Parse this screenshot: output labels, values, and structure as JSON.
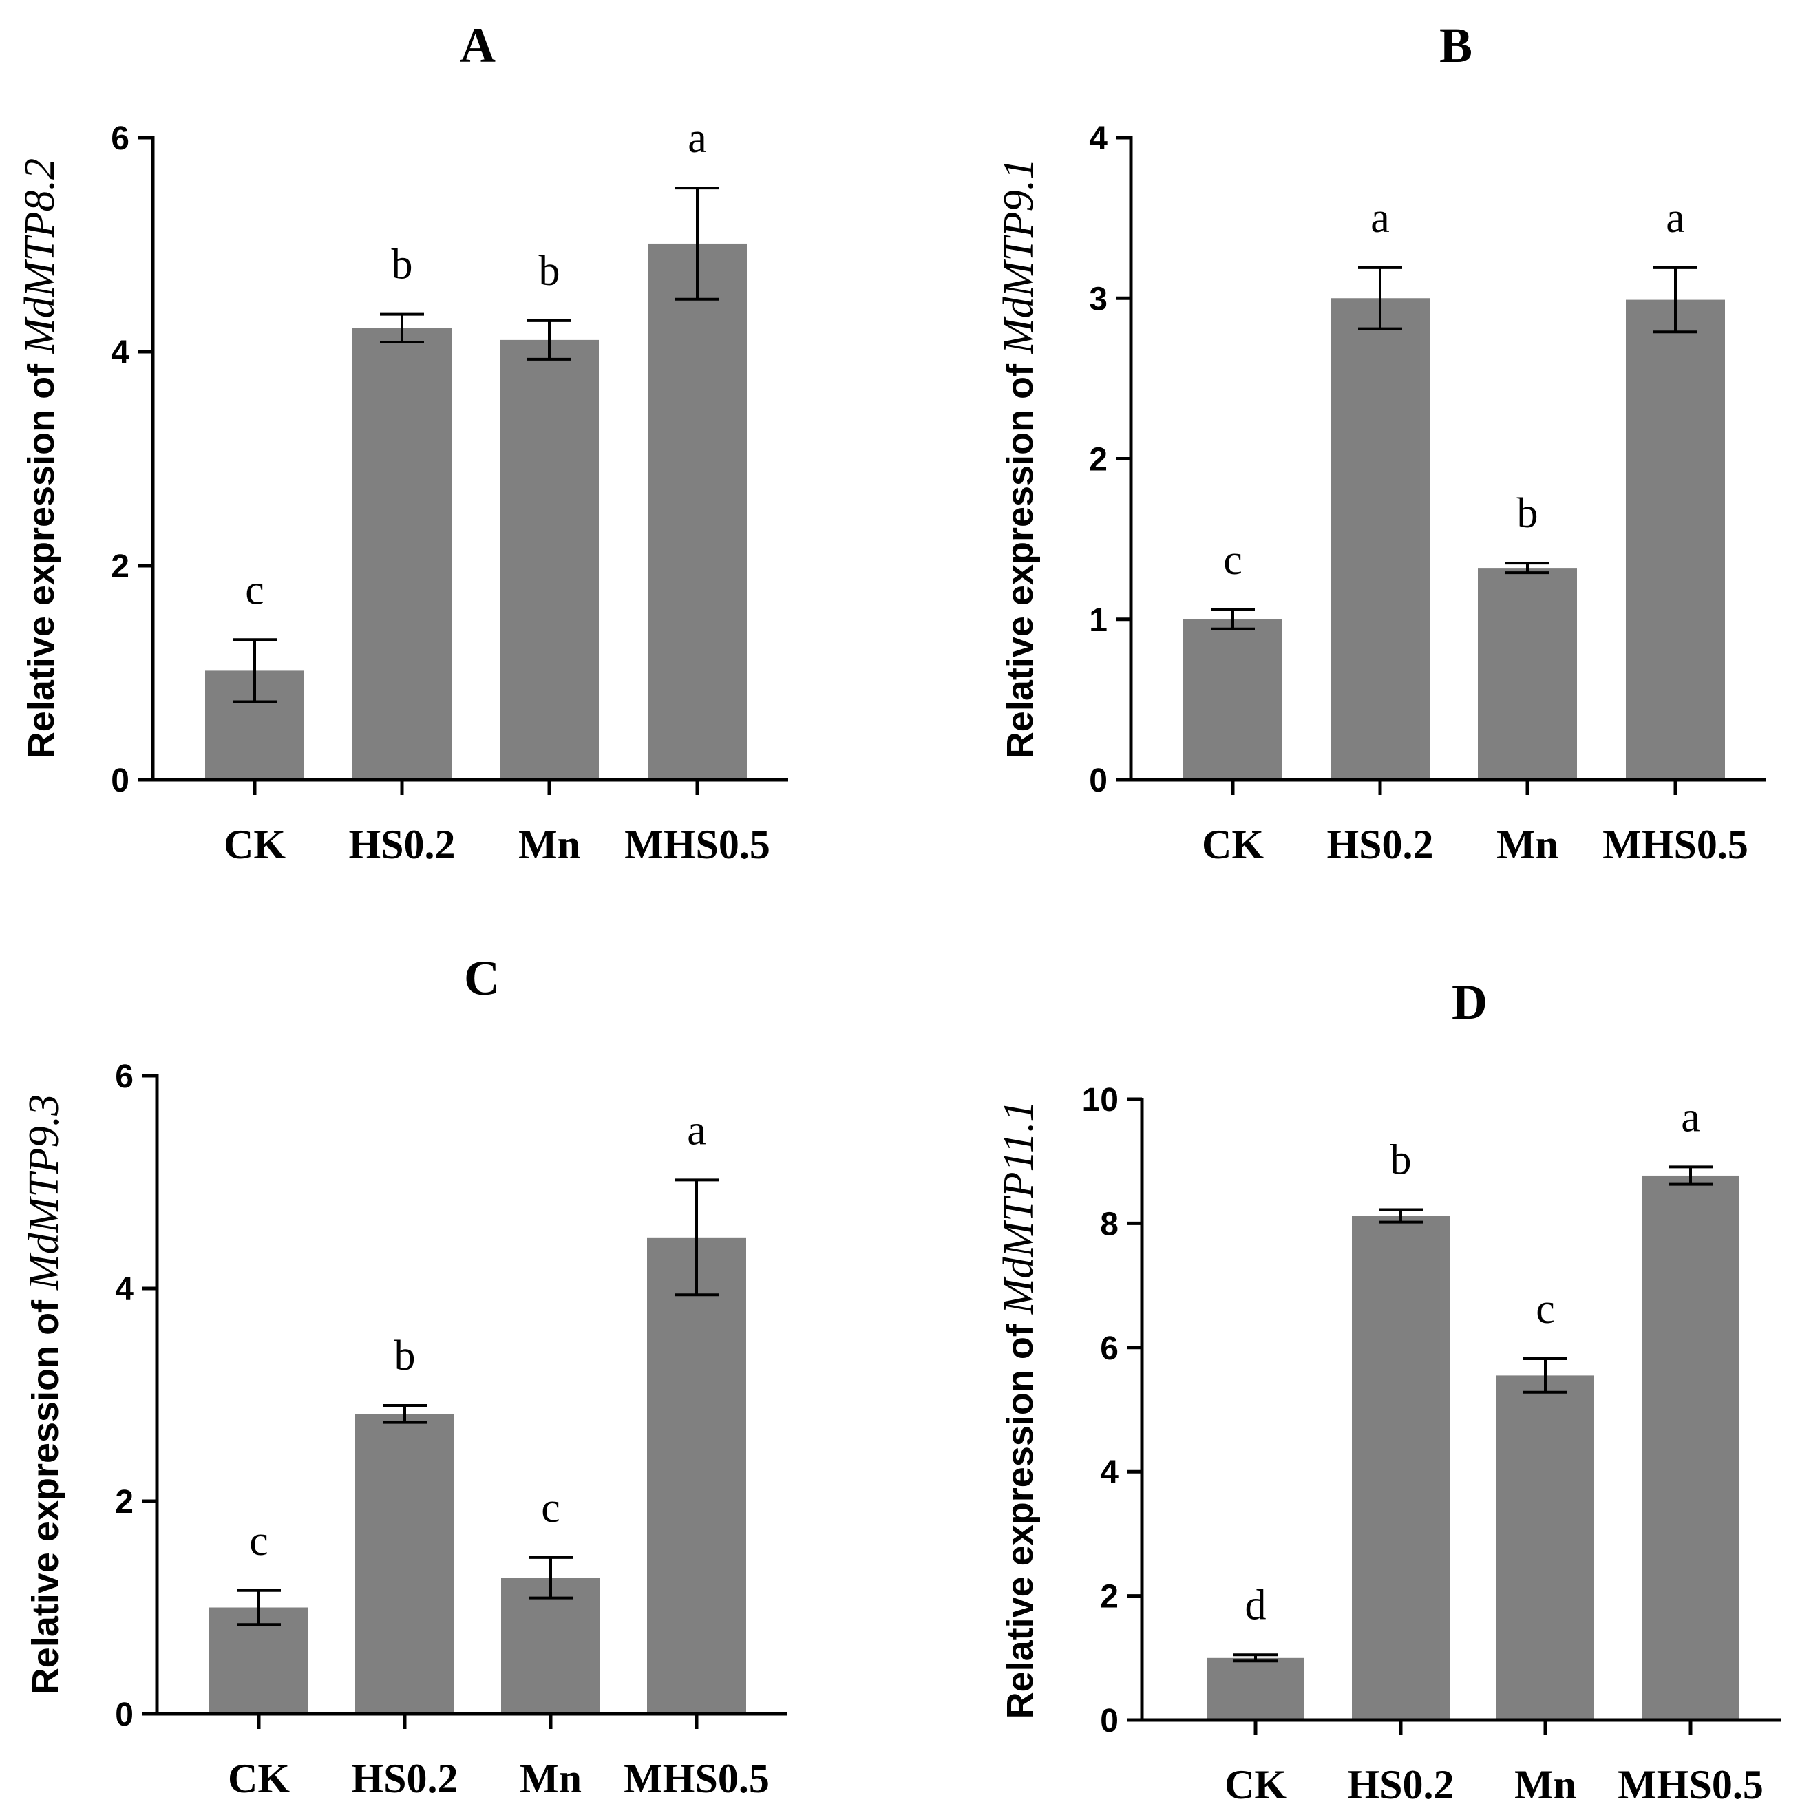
{
  "chart_data": [
    {
      "type": "bar",
      "title": "A",
      "ylabel_prefix": "Relative expression of ",
      "ylabel_gene": "MdMTP8.2",
      "categories": [
        "CK",
        "HS0.2",
        "Mn",
        "MHS0.5"
      ],
      "values": [
        1.02,
        4.22,
        4.11,
        5.01
      ],
      "errors": [
        0.29,
        0.13,
        0.18,
        0.52
      ],
      "significance": [
        "c",
        "b",
        "b",
        "a"
      ],
      "ylim": [
        0,
        6
      ],
      "yticks": [
        0,
        2,
        4,
        6
      ],
      "ytick_labels": [
        "0",
        "2",
        "4",
        "6"
      ],
      "bar_color": "#808080"
    },
    {
      "type": "bar",
      "title": "B",
      "ylabel_prefix": "Relative expression of ",
      "ylabel_gene": "MdMTP9.1",
      "categories": [
        "CK",
        "HS0.2",
        "Mn",
        "MHS0.5"
      ],
      "values": [
        1.0,
        3.0,
        1.32,
        2.99
      ],
      "errors": [
        0.06,
        0.19,
        0.03,
        0.2
      ],
      "significance": [
        "c",
        "a",
        "b",
        "a"
      ],
      "ylim": [
        0,
        4
      ],
      "yticks": [
        0,
        1,
        2,
        3,
        4
      ],
      "ytick_labels": [
        "0",
        "1",
        "2",
        "3",
        "4"
      ],
      "bar_color": "#808080"
    },
    {
      "type": "bar",
      "title": "C",
      "ylabel_prefix": "Relative expression of ",
      "ylabel_gene": "MdMTP9.3",
      "categories": [
        "CK",
        "HS0.2",
        "Mn",
        "MHS0.5"
      ],
      "values": [
        1.0,
        2.82,
        1.28,
        4.48
      ],
      "errors": [
        0.16,
        0.08,
        0.19,
        0.54
      ],
      "significance": [
        "c",
        "b",
        "c",
        "a"
      ],
      "ylim": [
        0,
        6
      ],
      "yticks": [
        0,
        2,
        4,
        6
      ],
      "ytick_labels": [
        "0",
        "2",
        "4",
        "6"
      ],
      "bar_color": "#808080"
    },
    {
      "type": "bar",
      "title": "D",
      "ylabel_prefix": "Relative expression of ",
      "ylabel_gene": "MdMTP11.1",
      "categories": [
        "CK",
        "HS0.2",
        "Mn",
        "MHS0.5"
      ],
      "values": [
        1.0,
        8.12,
        5.55,
        8.77
      ],
      "errors": [
        0.05,
        0.1,
        0.27,
        0.14
      ],
      "significance": [
        "d",
        "b",
        "c",
        "a"
      ],
      "ylim": [
        0,
        10
      ],
      "yticks": [
        0,
        2,
        4,
        6,
        8,
        10
      ],
      "ytick_labels": [
        "0",
        "2",
        "4",
        "6",
        "8",
        "10"
      ],
      "bar_color": "#808080"
    }
  ]
}
